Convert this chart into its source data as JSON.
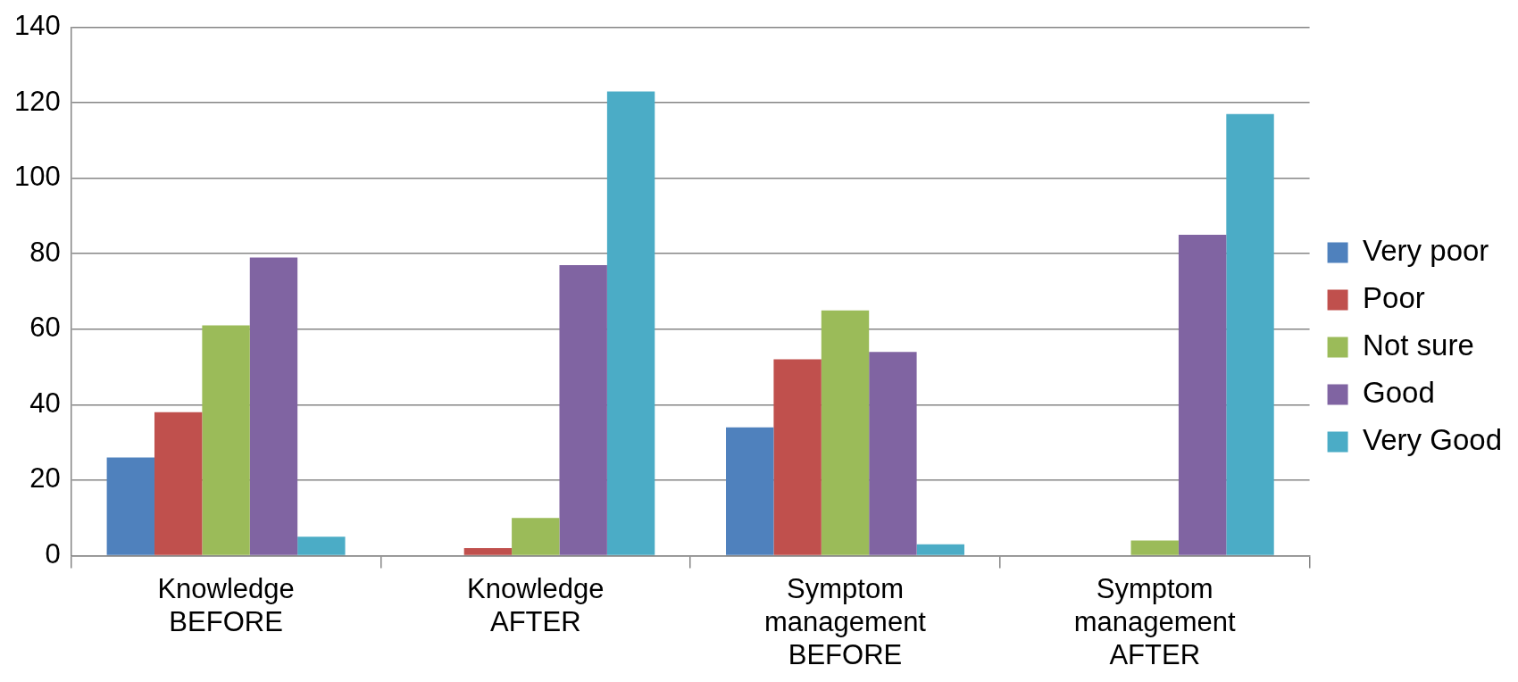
{
  "chart_data": {
    "type": "bar",
    "categories": [
      "Knowledge BEFORE",
      "Knowledge AFTER",
      "Symptom management BEFORE",
      "Symptom management AFTER"
    ],
    "series": [
      {
        "name": "Very poor",
        "color": "#4f81bd",
        "values": [
          26,
          0,
          34,
          0
        ]
      },
      {
        "name": "Poor",
        "color": "#c0504d",
        "values": [
          38,
          2,
          52,
          0
        ]
      },
      {
        "name": "Not sure",
        "color": "#9bbb59",
        "values": [
          61,
          10,
          65,
          4
        ]
      },
      {
        "name": "Good",
        "color": "#8064a2",
        "values": [
          79,
          77,
          54,
          85
        ]
      },
      {
        "name": "Very Good",
        "color": "#4bacc6",
        "values": [
          5,
          123,
          3,
          117
        ]
      }
    ],
    "ylim": [
      0,
      140
    ],
    "yticks": [
      0,
      20,
      40,
      60,
      80,
      100,
      120,
      140
    ],
    "grid": "y",
    "legend": "right"
  }
}
